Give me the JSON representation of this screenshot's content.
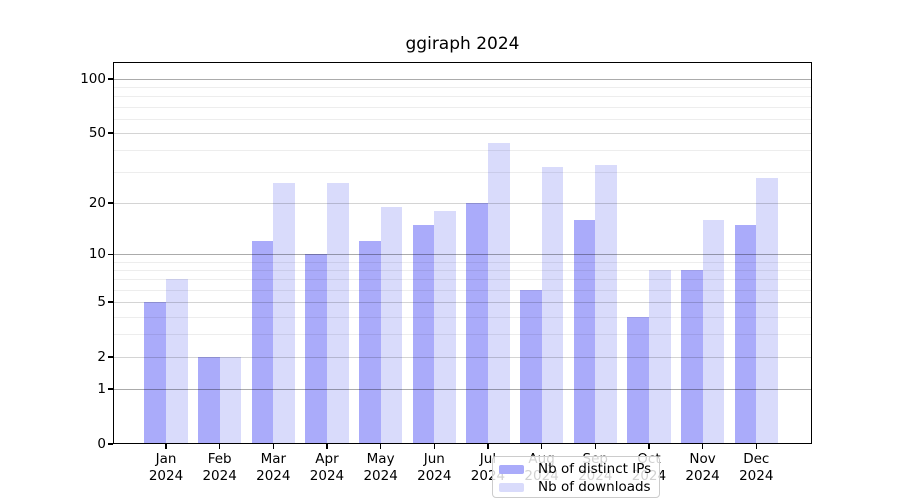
{
  "chart_data": {
    "type": "bar",
    "title": "ggiraph 2024",
    "categories": [
      "Jan",
      "Feb",
      "Mar",
      "Apr",
      "May",
      "Jun",
      "Jul",
      "Aug",
      "Sep",
      "Oct",
      "Nov",
      "Dec"
    ],
    "category_year_label": "2024",
    "series": [
      {
        "name": "Nb of distinct IPs",
        "color": "#aaabfa",
        "values": [
          5,
          2,
          12,
          10,
          12,
          15,
          20,
          6,
          16,
          4,
          8,
          15
        ]
      },
      {
        "name": "Nb of downloads",
        "color": "#d9dbfb",
        "values": [
          7,
          2,
          26,
          26,
          19,
          18,
          44,
          32,
          33,
          8,
          16,
          28
        ]
      }
    ],
    "xlabel": "",
    "ylabel": "",
    "yscale": "log1p",
    "ylim": [
      0,
      124
    ],
    "ytick_labels": [
      "0",
      "1",
      "2",
      "5",
      "10",
      "20",
      "50",
      "100"
    ],
    "ytick_values": [
      0,
      1,
      2,
      5,
      10,
      20,
      50,
      100
    ],
    "major_gridlines": [
      2,
      5,
      20,
      50
    ],
    "emphasized_gridlines": [
      1,
      10,
      100
    ],
    "minor_gridlines": [
      3,
      4,
      6,
      7,
      8,
      9,
      30,
      40,
      60,
      70,
      80,
      90
    ],
    "grid": true,
    "legend_position": "bottom-center-inside"
  }
}
